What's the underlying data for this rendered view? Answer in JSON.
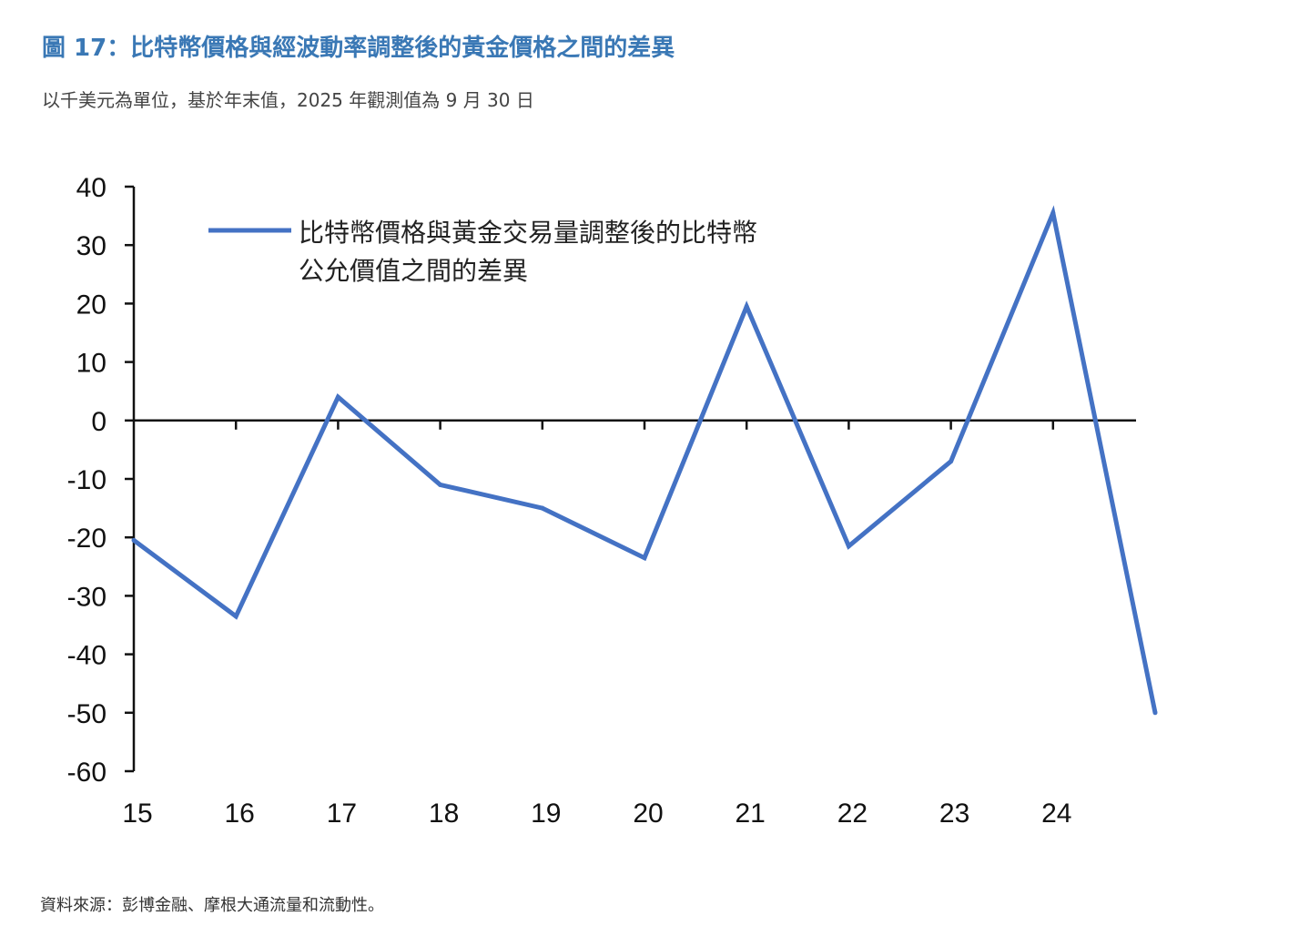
{
  "header": {
    "title": "圖 17：比特幣價格與經波動率調整後的黃金價格之間的差異",
    "subtitle": "以千美元為單位，基於年末值，2025 年觀測值為 9 月 30 日"
  },
  "footer": {
    "source": "資料來源：彭博金融、摩根大通流量和流動性。"
  },
  "colors": {
    "title": "#3a78b5",
    "series": "#4472c4",
    "axis": "#111111"
  },
  "chart_data": {
    "type": "line",
    "title": "圖 17：比特幣價格與經波動率調整後的黃金價格之間的差異",
    "subtitle": "以千美元為單位，基於年末值，2025 年觀測值為 9 月 30 日",
    "xlabel": "",
    "ylabel": "",
    "x_tick_labels": [
      "15",
      "16",
      "17",
      "18",
      "19",
      "20",
      "21",
      "22",
      "23",
      "24"
    ],
    "y_ticks": [
      40,
      30,
      20,
      10,
      0,
      -10,
      -20,
      -30,
      -40,
      -50,
      -60
    ],
    "ylim": [
      -60,
      40
    ],
    "xlim": [
      2015,
      2025
    ],
    "grid": false,
    "legend_position": "top-left",
    "series": [
      {
        "name": "比特幣價格與黃金交易量調整後的比特幣公允價值之間的差異",
        "legend_lines": [
          "比特幣價格與黃金交易量調整後的比特幣",
          "公允價值之間的差異"
        ],
        "x": [
          2015,
          2016,
          2017,
          2018,
          2019,
          2020,
          2021,
          2022,
          2023,
          2024,
          2025
        ],
        "values": [
          -20.5,
          -33.5,
          4,
          -11,
          -15,
          -23.5,
          19.5,
          -21.5,
          -7,
          35.5,
          -50
        ]
      }
    ]
  }
}
